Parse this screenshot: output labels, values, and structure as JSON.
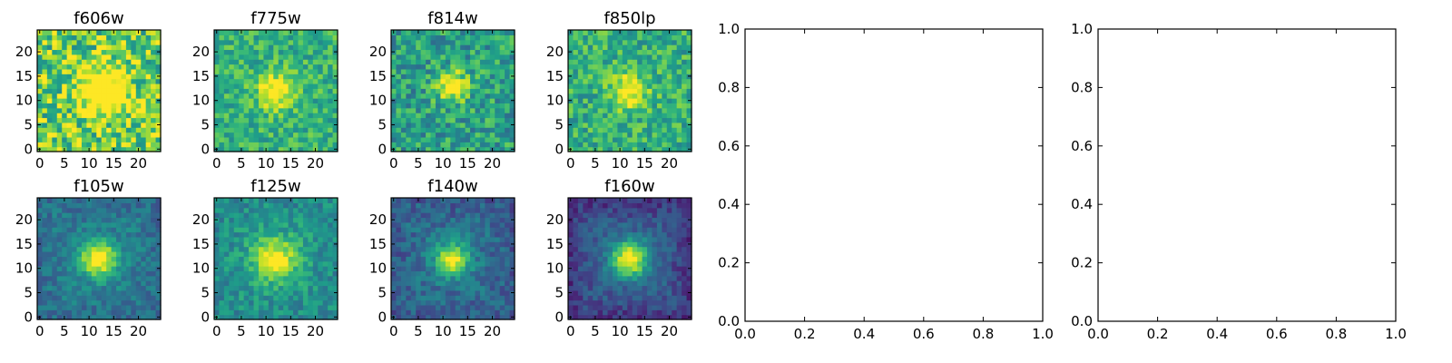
{
  "chart_data": [
    {
      "type": "heatmap",
      "title": "f606w",
      "grid_size": 25,
      "center": [
        13,
        12
      ],
      "peak": 0.68,
      "sigma": 3.2,
      "noise": 0.3,
      "bg": 0.78,
      "vignette": 0.0,
      "seed": 11,
      "xticks": [
        "0",
        "5",
        "10",
        "15",
        "20"
      ],
      "yticks": [
        "0",
        "5",
        "10",
        "15",
        "20"
      ]
    },
    {
      "type": "heatmap",
      "title": "f775w",
      "grid_size": 25,
      "center": [
        12,
        12
      ],
      "peak": 0.45,
      "sigma": 2.6,
      "noise": 0.17,
      "bg": 0.64,
      "vignette": 0.0,
      "seed": 23,
      "xticks": [
        "0",
        "5",
        "10",
        "15",
        "20"
      ],
      "yticks": [
        "0",
        "5",
        "10",
        "15",
        "20"
      ]
    },
    {
      "type": "heatmap",
      "title": "f814w",
      "grid_size": 25,
      "center": [
        12,
        13
      ],
      "peak": 0.5,
      "sigma": 2.3,
      "noise": 0.21,
      "bg": 0.56,
      "vignette": 0.0,
      "seed": 37,
      "xticks": [
        "0",
        "5",
        "10",
        "15",
        "20"
      ],
      "yticks": [
        "0",
        "5",
        "10",
        "15",
        "20"
      ]
    },
    {
      "type": "heatmap",
      "title": "f850lp",
      "grid_size": 25,
      "center": [
        12,
        12
      ],
      "peak": 0.42,
      "sigma": 2.6,
      "noise": 0.19,
      "bg": 0.63,
      "vignette": 0.0,
      "seed": 41,
      "xticks": [
        "0",
        "5",
        "10",
        "15",
        "20"
      ],
      "yticks": [
        "0",
        "5",
        "10",
        "15",
        "20"
      ]
    },
    {
      "type": "heatmap",
      "title": "f105w",
      "grid_size": 25,
      "center": [
        12,
        12
      ],
      "peak": 0.62,
      "sigma": 2.5,
      "noise": 0.11,
      "bg": 0.45,
      "vignette": 0.1,
      "seed": 53,
      "xticks": [
        "0",
        "5",
        "10",
        "15",
        "20"
      ],
      "yticks": [
        "0",
        "5",
        "10",
        "15",
        "20"
      ]
    },
    {
      "type": "heatmap",
      "title": "f125w",
      "grid_size": 25,
      "center": [
        12,
        12
      ],
      "peak": 0.48,
      "sigma": 3.0,
      "noise": 0.13,
      "bg": 0.55,
      "vignette": 0.08,
      "seed": 67,
      "xticks": [
        "0",
        "5",
        "10",
        "15",
        "20"
      ],
      "yticks": [
        "0",
        "5",
        "10",
        "15",
        "20"
      ]
    },
    {
      "type": "heatmap",
      "title": "f140w",
      "grid_size": 25,
      "center": [
        12,
        12
      ],
      "peak": 0.6,
      "sigma": 2.2,
      "noise": 0.12,
      "bg": 0.4,
      "vignette": 0.12,
      "seed": 71,
      "xticks": [
        "0",
        "5",
        "10",
        "15",
        "20"
      ],
      "yticks": [
        "0",
        "5",
        "10",
        "15",
        "20"
      ]
    },
    {
      "type": "heatmap",
      "title": "f160w",
      "grid_size": 25,
      "center": [
        12,
        12
      ],
      "peak": 0.68,
      "sigma": 2.5,
      "noise": 0.1,
      "bg": 0.36,
      "vignette": 0.22,
      "seed": 83,
      "xticks": [
        "0",
        "5",
        "10",
        "15",
        "20"
      ],
      "yticks": [
        "0",
        "5",
        "10",
        "15",
        "20"
      ]
    },
    {
      "type": "line",
      "title": "",
      "series": [],
      "xlim": [
        0.0,
        1.0
      ],
      "ylim": [
        0.0,
        1.0
      ],
      "xticks": [
        "0.0",
        "0.2",
        "0.4",
        "0.6",
        "0.8",
        "1.0"
      ],
      "yticks": [
        "0.0",
        "0.2",
        "0.4",
        "0.6",
        "0.8",
        "1.0"
      ]
    },
    {
      "type": "line",
      "title": "",
      "series": [],
      "xlim": [
        0.0,
        1.0
      ],
      "ylim": [
        0.0,
        1.0
      ],
      "xticks": [
        "0.0",
        "0.2",
        "0.4",
        "0.6",
        "0.8",
        "1.0"
      ],
      "yticks": [
        "0.0",
        "0.2",
        "0.4",
        "0.6",
        "0.8",
        "1.0"
      ]
    }
  ],
  "colormap": [
    "#440154",
    "#482878",
    "#3e4989",
    "#31688e",
    "#26828e",
    "#1f9e89",
    "#35b779",
    "#6ece58",
    "#b5de2b",
    "#fde725"
  ]
}
